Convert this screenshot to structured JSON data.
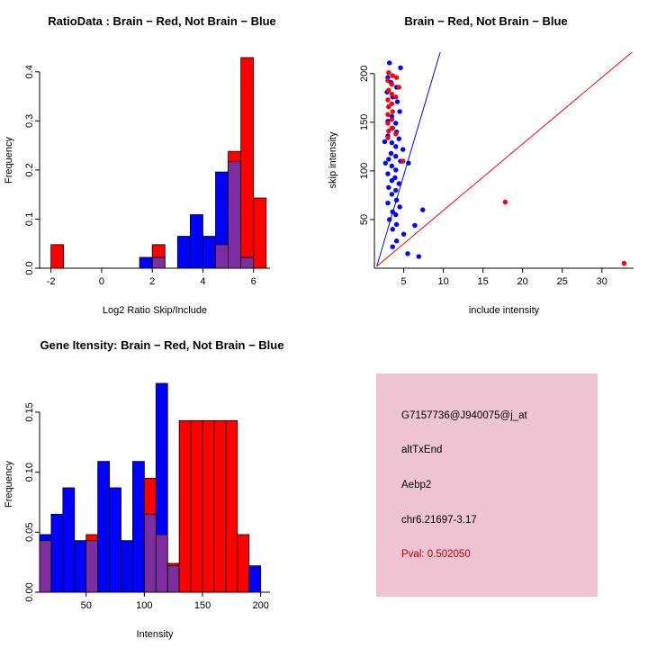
{
  "colors": {
    "red": "#FF0000",
    "blue": "#0000FF",
    "overlap": "#7D2E9E",
    "axis": "#000000",
    "info_bg": "#EFC4D2",
    "pval": "#C00000"
  },
  "panels": {
    "ratio_hist": {
      "title": "RatioData : Brain − Red, Not Brain − Blue"
    },
    "scatter": {
      "title": "Brain − Red, Not Brain − Blue"
    },
    "gene_hist": {
      "title": "Gene Itensity: Brain − Red, Not Brain − Blue"
    },
    "info_box": {
      "lines": [
        "G7157736@J940075@j_at",
        "altTxEnd",
        "Aebp2",
        "chr6.21697-3.17",
        "Pval: 0.502050"
      ]
    }
  },
  "chart_data": [
    {
      "type": "bar",
      "subtype": "histogram-overlay",
      "title": "RatioData : Brain − Red, Not Brain − Blue",
      "xlabel": "Log2 Ratio Skip/Include",
      "ylabel": "Frequency",
      "xlim": [
        -2.45,
        6.65
      ],
      "ylim": [
        0,
        0.44
      ],
      "xticks": [
        -2,
        0,
        2,
        4,
        6
      ],
      "xtick_labels": [
        "-2",
        "0",
        "2",
        "4",
        "6"
      ],
      "yticks": [
        0,
        0.1,
        0.2,
        0.3,
        0.4
      ],
      "ytick_labels": [
        "0.0",
        "0.1",
        "0.2",
        "0.3",
        "0.4"
      ],
      "bin_width": 0.5,
      "series": [
        {
          "name": "Not Brain",
          "color": "blue",
          "bins": [
            [
              1.5,
              0.022
            ],
            [
              2.0,
              0.022
            ],
            [
              3.0,
              0.065
            ],
            [
              3.5,
              0.109
            ],
            [
              4.0,
              0.065
            ],
            [
              4.5,
              0.196
            ],
            [
              5.0,
              0.217
            ],
            [
              5.5,
              0.022
            ]
          ]
        },
        {
          "name": "Brain",
          "color": "red",
          "bins": [
            [
              -2.0,
              0.048
            ],
            [
              2.0,
              0.048
            ],
            [
              4.5,
              0.048
            ],
            [
              5.0,
              0.238
            ],
            [
              5.5,
              0.429
            ],
            [
              6.0,
              0.143
            ]
          ]
        }
      ]
    },
    {
      "type": "scatter",
      "title": "Brain − Red, Not Brain − Blue",
      "xlabel": "include intensity",
      "ylabel": "skip intensity",
      "xlim": [
        1.3,
        34
      ],
      "ylim": [
        0,
        222
      ],
      "xticks": [
        5,
        10,
        15,
        20,
        25,
        30
      ],
      "yticks": [
        50,
        100,
        150,
        200
      ],
      "series": [
        {
          "name": "Not Brain",
          "color": "blue",
          "points": [
            [
              3.2,
              211
            ],
            [
              4.6,
              206
            ],
            [
              3.0,
              196
            ],
            [
              3.4,
              191
            ],
            [
              4.1,
              186
            ],
            [
              2.9,
              181
            ],
            [
              3.6,
              176
            ],
            [
              4.2,
              171
            ],
            [
              3.1,
              166
            ],
            [
              4.5,
              161
            ],
            [
              3.5,
              156
            ],
            [
              3.0,
              151
            ],
            [
              4.0,
              149
            ],
            [
              3.6,
              144
            ],
            [
              4.1,
              140
            ],
            [
              3.0,
              136
            ],
            [
              4.4,
              133
            ],
            [
              2.6,
              130
            ],
            [
              3.5,
              129
            ],
            [
              4.0,
              125
            ],
            [
              4.9,
              122
            ],
            [
              3.4,
              118
            ],
            [
              4.0,
              115
            ],
            [
              3.1,
              112
            ],
            [
              4.6,
              110
            ],
            [
              5.6,
              108
            ],
            [
              2.7,
              108
            ],
            [
              3.5,
              105
            ],
            [
              4.0,
              101
            ],
            [
              3.0,
              97
            ],
            [
              3.9,
              93
            ],
            [
              3.5,
              90
            ],
            [
              4.4,
              87
            ],
            [
              3.1,
              83
            ],
            [
              4.0,
              80
            ],
            [
              3.5,
              76
            ],
            [
              4.1,
              70
            ],
            [
              3.0,
              67
            ],
            [
              4.5,
              63
            ],
            [
              7.4,
              60
            ],
            [
              3.6,
              58
            ],
            [
              4.0,
              55
            ],
            [
              3.2,
              50
            ],
            [
              4.1,
              45
            ],
            [
              6.4,
              44
            ],
            [
              3.6,
              40
            ],
            [
              5.0,
              35
            ],
            [
              4.1,
              28
            ],
            [
              3.6,
              22
            ],
            [
              5.5,
              15
            ],
            [
              6.9,
              12
            ]
          ]
        },
        {
          "name": "Brain",
          "color": "red",
          "points": [
            [
              3.1,
              201
            ],
            [
              3.6,
              198
            ],
            [
              4.1,
              196
            ],
            [
              3.0,
              193
            ],
            [
              3.5,
              189
            ],
            [
              4.4,
              186
            ],
            [
              3.1,
              183
            ],
            [
              3.5,
              179
            ],
            [
              4.0,
              176
            ],
            [
              3.0,
              173
            ],
            [
              3.5,
              169
            ],
            [
              3.1,
              166
            ],
            [
              3.6,
              161
            ],
            [
              3.0,
              158
            ],
            [
              3.5,
              153
            ],
            [
              3.0,
              149
            ],
            [
              3.5,
              144
            ],
            [
              3.1,
              141
            ],
            [
              4.0,
              138
            ],
            [
              3.0,
              134
            ],
            [
              4.9,
              110
            ],
            [
              17.8,
              68
            ],
            [
              32.8,
              5
            ]
          ]
        }
      ],
      "lines": [
        {
          "name": "not-brain-fit",
          "color": "blue",
          "x1": 1.6,
          "y1": 2,
          "x2": 9.6,
          "y2": 222
        },
        {
          "name": "brain-fit",
          "color": "red",
          "x1": 1.6,
          "y1": 2,
          "x2": 33.8,
          "y2": 222
        }
      ]
    },
    {
      "type": "bar",
      "subtype": "histogram-overlay",
      "title": "Gene Itensity: Brain − Red, Not Brain − Blue",
      "xlabel": "Intensity",
      "ylabel": "Frequency",
      "xlim": [
        10,
        208
      ],
      "ylim": [
        0,
        0.18
      ],
      "xticks": [
        50,
        100,
        150,
        200
      ],
      "xtick_labels": [
        "50",
        "100",
        "150",
        "200"
      ],
      "yticks": [
        0,
        0.05,
        0.1,
        0.15
      ],
      "ytick_labels": [
        "0.00",
        "0.05",
        "0.10",
        "0.15"
      ],
      "bin_width": 10,
      "series": [
        {
          "name": "Not Brain",
          "color": "blue",
          "bins": [
            [
              10,
              0.048
            ],
            [
              20,
              0.065
            ],
            [
              30,
              0.087
            ],
            [
              40,
              0.043
            ],
            [
              50,
              0.043
            ],
            [
              60,
              0.109
            ],
            [
              70,
              0.087
            ],
            [
              80,
              0.043
            ],
            [
              90,
              0.109
            ],
            [
              100,
              0.065
            ],
            [
              110,
              0.174
            ],
            [
              120,
              0.022
            ],
            [
              190,
              0.022
            ]
          ]
        },
        {
          "name": "Brain",
          "color": "red",
          "bins": [
            [
              10,
              0.043
            ],
            [
              50,
              0.048
            ],
            [
              100,
              0.095
            ],
            [
              110,
              0.048
            ],
            [
              120,
              0.024
            ],
            [
              130,
              0.143
            ],
            [
              140,
              0.143
            ],
            [
              150,
              0.143
            ],
            [
              160,
              0.143
            ],
            [
              170,
              0.143
            ],
            [
              180,
              0.048
            ]
          ]
        }
      ]
    }
  ]
}
